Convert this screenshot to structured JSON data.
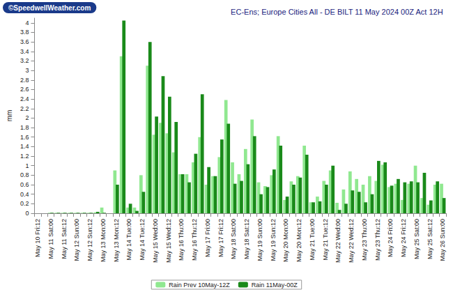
{
  "chart_data": {
    "type": "bar",
    "title": "EC-Ens; Europe Cities All - DE BILT 11 May 2024 00Z Act 12H",
    "annotations": [
      "©SpeedwellWeather.com"
    ],
    "ylabel": "mm",
    "categories": [
      "May 10 Fri:12",
      null,
      "May 11 Sat:00",
      null,
      "May 11 Sat:12",
      null,
      "May 12 Sun:00",
      null,
      "May 12 Sun:12",
      null,
      "May 13 Mon:00",
      null,
      "May 13 Mon:12",
      null,
      "May 14 Tue:00",
      null,
      "May 14 Tue:12",
      null,
      "May 15 Wed:00",
      null,
      "May 15 Wed:12",
      null,
      "May 16 Thu:00",
      null,
      "May 16 Thu:12",
      null,
      "May 17 Fri:00",
      null,
      "May 17 Fri:12",
      null,
      "May 18 Sat:00",
      null,
      "May 18 Sat:12",
      null,
      "May 19 Sun:00",
      null,
      "May 19 Sun:12",
      null,
      "May 20 Mon:00",
      null,
      "May 20 Mon:12",
      null,
      "May 21 Tue:00",
      null,
      "May 21 Tue:12",
      null,
      "May 22 Wed:00",
      null,
      "May 22 Wed:12",
      null,
      "May 23 Thu:00",
      null,
      "May 23 Thu:12",
      null,
      "May 24 Fri:00",
      null,
      "May 24 Fri:12",
      null,
      "May 25 Sat:00",
      null,
      "May 25 Sat:12",
      null,
      "May 26 Sun:00"
    ],
    "series": [
      {
        "name": "Rain Prev 10May-12Z",
        "color": "#90e890",
        "values": [
          0,
          0,
          0.01,
          0.01,
          0.01,
          0.01,
          0.01,
          0.01,
          0.01,
          0.02,
          0.12,
          0,
          0.9,
          3.3,
          0.12,
          0.12,
          0.8,
          3.1,
          1.65,
          1.9,
          1.68,
          1.28,
          0.82,
          0.82,
          1.07,
          1.6,
          0.6,
          0.78,
          1.18,
          2.38,
          1.07,
          0.82,
          1.35,
          1.97,
          0.65,
          0.57,
          0.8,
          1.62,
          0.28,
          0.67,
          0.78,
          1.42,
          0.23,
          0.35,
          0.68,
          0.9,
          0.22,
          0.5,
          0.88,
          0.72,
          0.6,
          0.78,
          0.68,
          1.02,
          0.55,
          0.62,
          0.28,
          0.62,
          1.0,
          0.32,
          0.18,
          0.6,
          0.62
        ]
      },
      {
        "name": "Rain 11May-00Z",
        "color": "#1a8a1a",
        "values": [
          0,
          0,
          0.01,
          0.01,
          0.01,
          0.01,
          0.01,
          0.01,
          0.01,
          0.03,
          0.01,
          0,
          0.6,
          4.05,
          0.2,
          0.05,
          0.45,
          3.6,
          2.03,
          2.88,
          2.45,
          1.92,
          0.82,
          0.65,
          1.25,
          2.5,
          0.97,
          0.78,
          1.55,
          1.88,
          0.62,
          0.68,
          1.03,
          1.62,
          0.4,
          0.55,
          0.92,
          1.42,
          0.35,
          0.6,
          0.75,
          1.23,
          0.23,
          0.25,
          0.6,
          1.0,
          0.07,
          0.2,
          0.48,
          0.45,
          0.23,
          0.4,
          1.1,
          1.07,
          0.58,
          0.72,
          0.65,
          0.67,
          0.65,
          0.85,
          0.27,
          0.67,
          0.32
        ]
      }
    ],
    "ylim": [
      0,
      4.1
    ],
    "yticks": [
      0,
      0.2,
      0.4,
      0.6,
      0.8,
      1,
      1.2,
      1.4,
      1.6,
      1.8,
      2,
      2.2,
      2.4,
      2.6,
      2.8,
      3,
      3.2,
      3.4,
      3.6,
      3.8,
      4
    ],
    "grid": false,
    "legend": "bottom"
  }
}
